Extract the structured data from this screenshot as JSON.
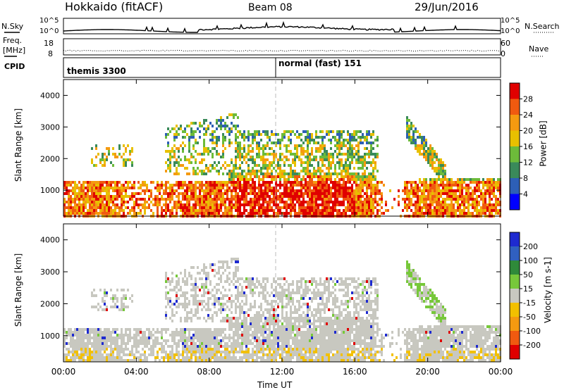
{
  "header": {
    "station": "Hokkaido (fitACF)",
    "beam": "Beam 08",
    "date": "29/Jun/2016"
  },
  "noise_panel": {
    "left_label": "N.Sky",
    "right_label": "N.Search",
    "tick_top": "10^5",
    "tick_bottom": "10^0"
  },
  "freq_panel": {
    "left_label_line1": "Freq.",
    "left_label_line2": "[MHz]",
    "right_label": "Nave",
    "left_tick_top": "18",
    "left_tick_bottom": "8",
    "right_tick_top": "60",
    "right_tick_bottom": "0"
  },
  "cpid_panel": {
    "label": "CPID",
    "modes": [
      {
        "name": "themis 3300"
      },
      {
        "name": "normal (fast) 151"
      }
    ]
  },
  "chart_data": [
    {
      "type": "heatmap",
      "title": "",
      "ylabel": "Slant Range [km]",
      "xlabel": "",
      "ylim": [
        180,
        4500
      ],
      "yticks": [
        "1000",
        "2000",
        "3000",
        "4000"
      ],
      "colorbar": {
        "label": "Power [dB]",
        "ticks": [
          "4",
          "8",
          "12",
          "16",
          "20",
          "24",
          "28"
        ],
        "colors": [
          "#0000ff",
          "#2d5fb6",
          "#3a8a5a",
          "#6dbb3a",
          "#e8c000",
          "#f59a10",
          "#f05a10",
          "#e00000"
        ]
      }
    },
    {
      "type": "heatmap",
      "title": "",
      "ylabel": "Slant Range [km]",
      "xlabel": "Time UT",
      "ylim": [
        180,
        4500
      ],
      "yticks": [
        "1000",
        "2000",
        "3000",
        "4000"
      ],
      "xticks": [
        "00:00",
        "04:00",
        "08:00",
        "12:00",
        "16:00",
        "20:00",
        "00:00"
      ],
      "colorbar": {
        "label": "Velocity [m s-1]",
        "ticks": [
          "200",
          "100",
          "50",
          "15",
          "-15",
          "-50",
          "-100",
          "-200"
        ],
        "colors": [
          "#1e2ad0",
          "#3060c0",
          "#2f8a3a",
          "#77c83a",
          "#c8c8c0",
          "#f2c000",
          "#f59a10",
          "#f05a10",
          "#e00000"
        ]
      }
    }
  ]
}
